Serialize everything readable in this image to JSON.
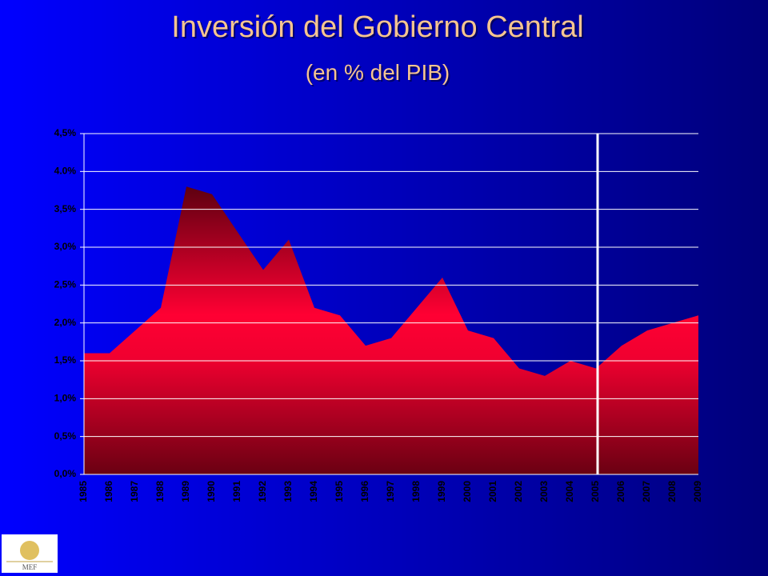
{
  "chart_data": {
    "type": "area",
    "title": "Inversión del Gobierno Central",
    "subtitle": "(en % del PIB)",
    "categories": [
      "1985",
      "1986",
      "1987",
      "1988",
      "1989",
      "1990",
      "1991",
      "1992",
      "1993",
      "1994",
      "1995",
      "1996",
      "1997",
      "1998",
      "1999",
      "2000",
      "2001",
      "2002",
      "2003",
      "2004",
      "2005",
      "2006",
      "2007",
      "2008",
      "2009"
    ],
    "values": [
      1.6,
      1.6,
      1.9,
      2.2,
      3.8,
      3.7,
      3.2,
      2.7,
      3.1,
      2.2,
      2.1,
      1.7,
      1.8,
      2.2,
      2.6,
      1.9,
      1.8,
      1.4,
      1.3,
      1.5,
      1.4,
      1.7,
      1.9,
      2.0,
      2.1
    ],
    "color": "#ff0033",
    "ylim": [
      0,
      4.5
    ],
    "yticks": [
      {
        "value": 0,
        "label": "0,0%"
      },
      {
        "value": 0.5,
        "label": "0,5%"
      },
      {
        "value": 1,
        "label": "1,0%"
      },
      {
        "value": 1.5,
        "label": "1,5%"
      },
      {
        "value": 2,
        "label": "2,0%"
      },
      {
        "value": 2.5,
        "label": "2,5%"
      },
      {
        "value": 3,
        "label": "3,0%"
      },
      {
        "value": 3.5,
        "label": "3,5%"
      },
      {
        "value": 4,
        "label": "4.0%"
      },
      {
        "value": 4.5,
        "label": "4,5%"
      }
    ],
    "grid": true,
    "vline": "2005"
  },
  "logo_text": "MEF"
}
